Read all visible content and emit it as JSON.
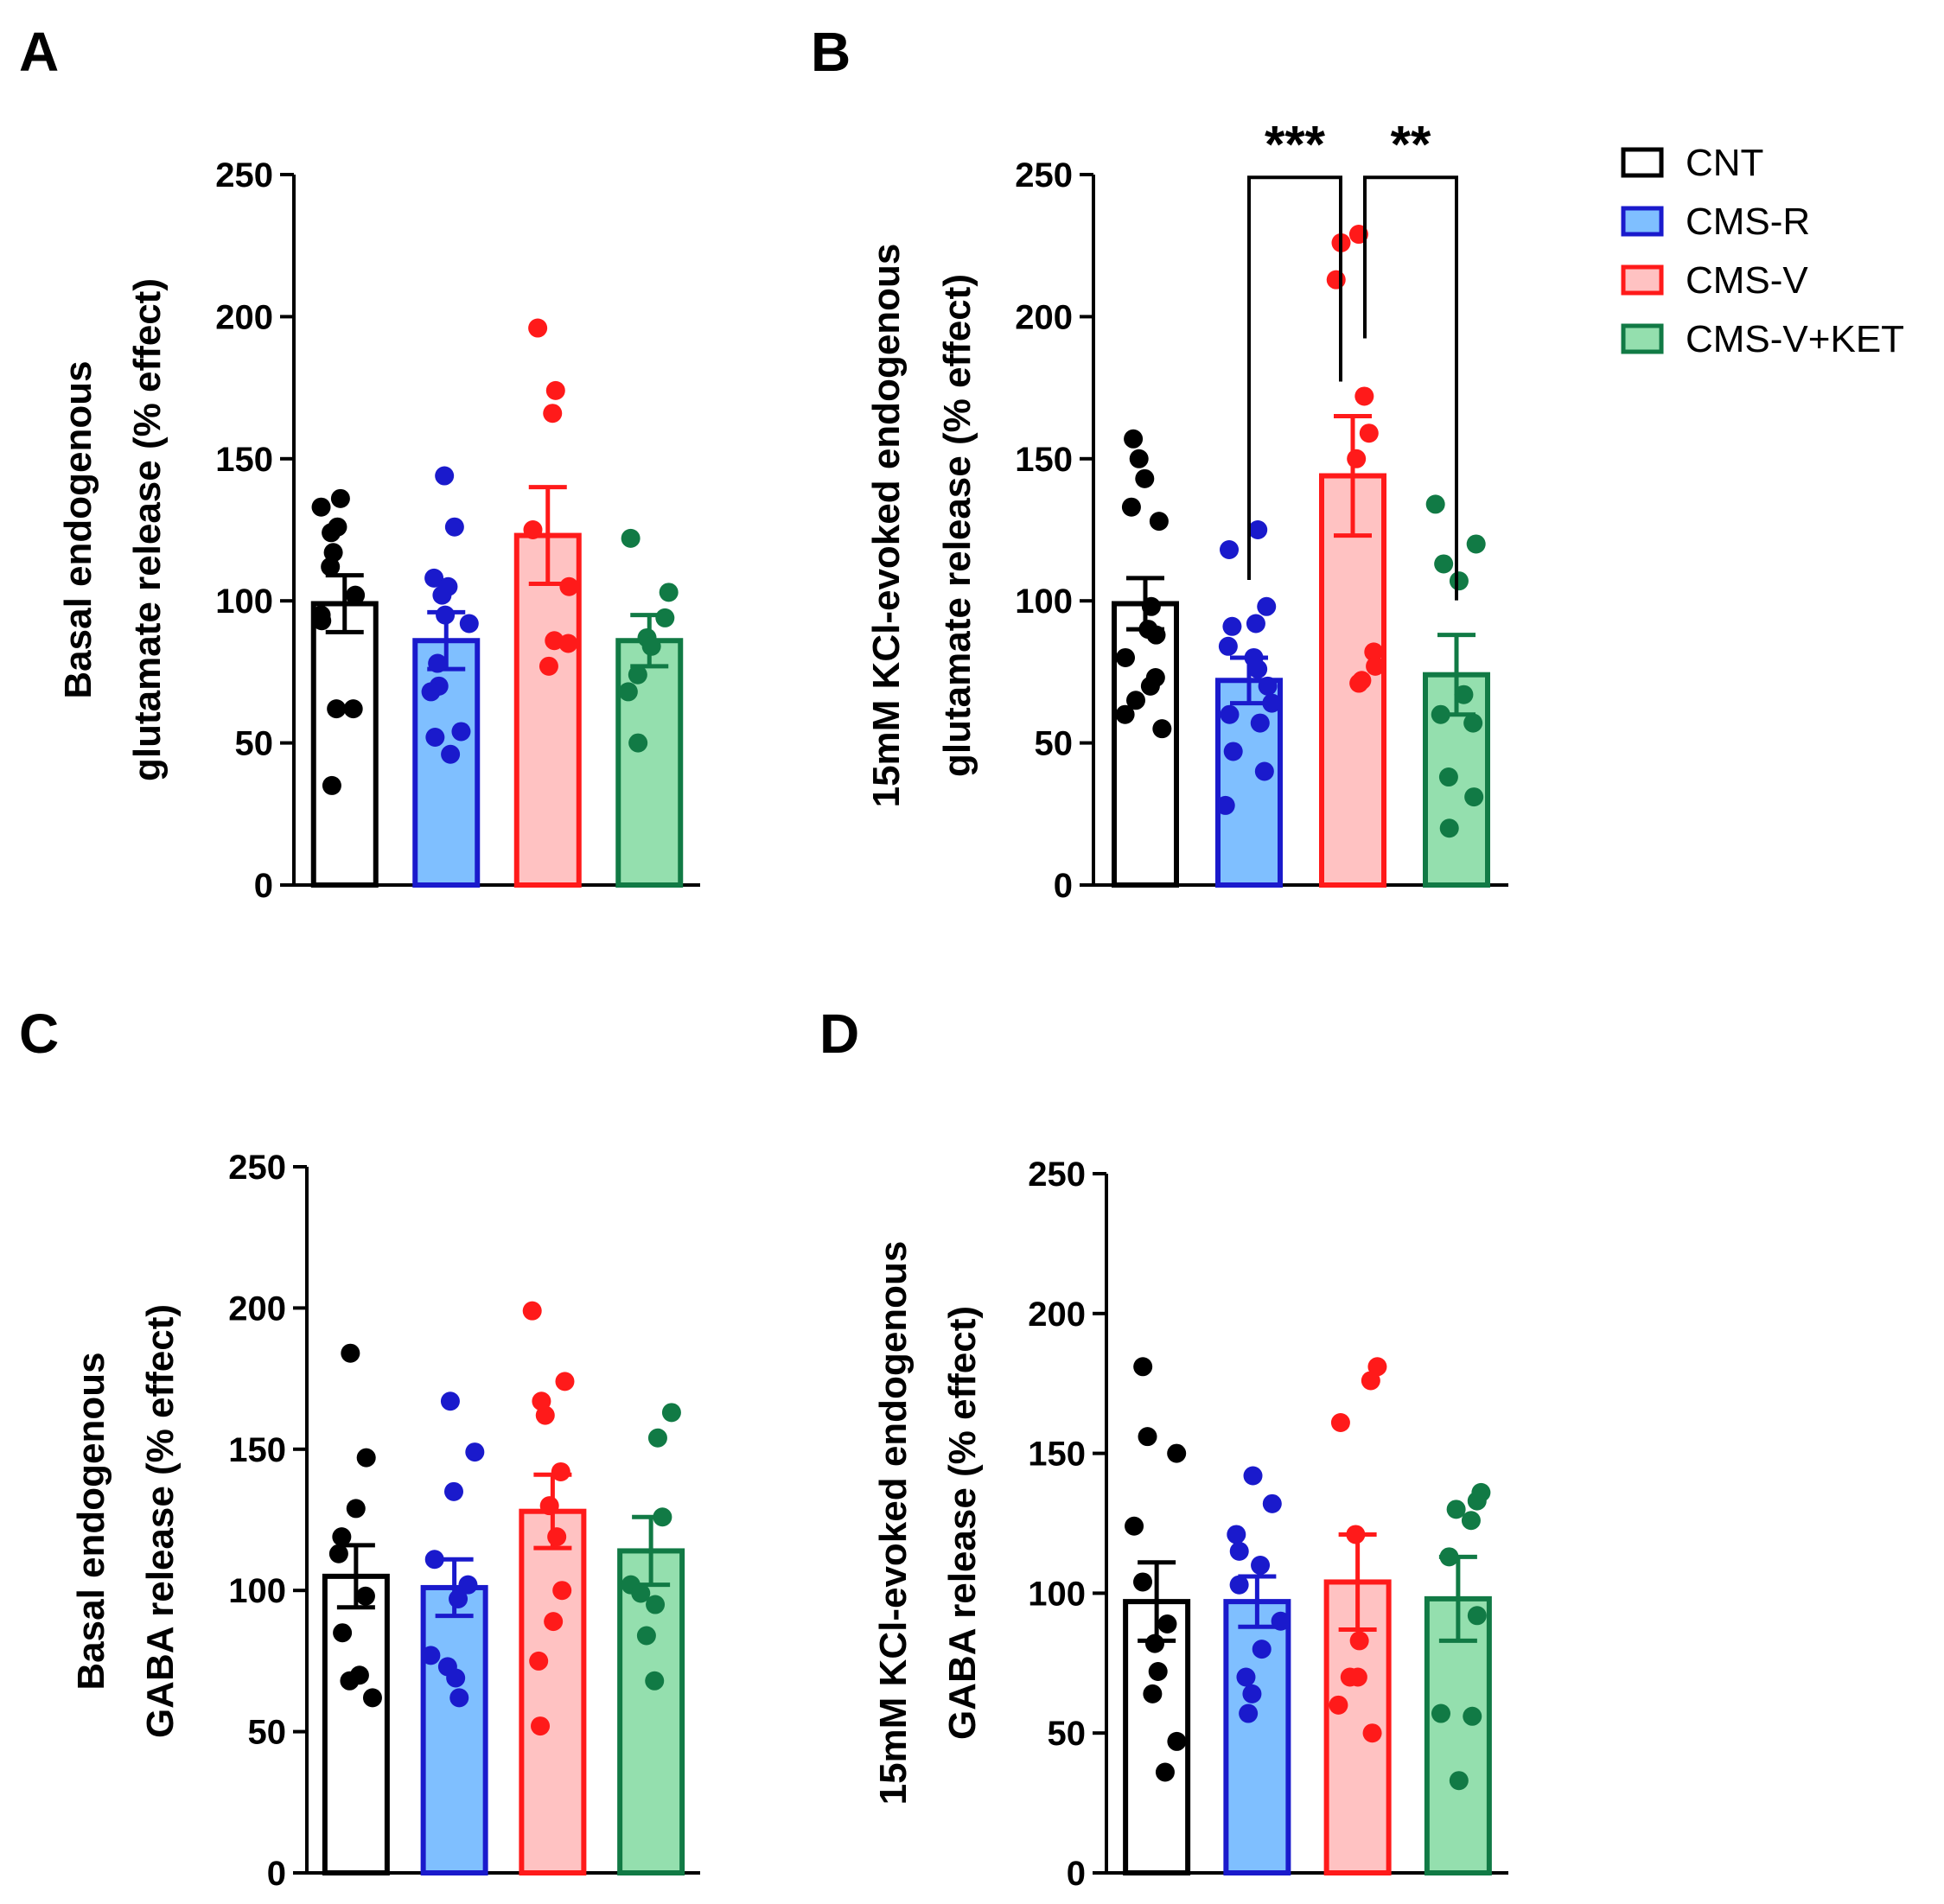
{
  "legend": [
    {
      "label": "CNT",
      "fill": "#ffffff",
      "stroke": "#000000"
    },
    {
      "label": "CMS-R",
      "fill": "#7fbfff",
      "stroke": "#1a1acc"
    },
    {
      "label": "CMS-V",
      "fill": "#ffc2c2",
      "stroke": "#ff1a1a"
    },
    {
      "label": "CMS-V+KET",
      "fill": "#94dfae",
      "stroke": "#117a45"
    }
  ],
  "chart_data": [
    {
      "panel": "A",
      "type": "bar",
      "ylabel_line1": "Basal endogenous",
      "ylabel_line2": "glutamate release (% effect)",
      "ylim": [
        0,
        250
      ],
      "yticks": [
        0,
        50,
        100,
        150,
        200,
        250
      ],
      "series": [
        {
          "name": "CNT",
          "mean": 99,
          "sem": 10,
          "points": [
            136,
            133,
            126,
            124,
            117,
            112,
            102,
            95,
            93,
            62,
            62,
            35
          ]
        },
        {
          "name": "CMS-R",
          "mean": 86,
          "sem": 10,
          "points": [
            144,
            126,
            108,
            105,
            102,
            95,
            92,
            78,
            70,
            68,
            54,
            52,
            46
          ]
        },
        {
          "name": "CMS-V",
          "mean": 123,
          "sem": 17,
          "points": [
            196,
            174,
            166,
            125,
            105,
            86,
            85,
            77
          ]
        },
        {
          "name": "CMS-V+KET",
          "mean": 86,
          "sem": 9,
          "points": [
            122,
            103,
            94,
            87,
            84,
            74,
            68,
            50
          ]
        }
      ],
      "significance": []
    },
    {
      "panel": "B",
      "type": "bar",
      "ylabel_line1": "15mM KCl-evoked endogenous",
      "ylabel_line2": "glutamate release (% effect)",
      "ylim": [
        0,
        250
      ],
      "yticks": [
        0,
        50,
        100,
        150,
        200,
        250
      ],
      "series": [
        {
          "name": "CNT",
          "mean": 99,
          "sem": 9,
          "points": [
            157,
            150,
            143,
            133,
            128,
            98,
            90,
            88,
            80,
            73,
            70,
            65,
            60,
            55
          ]
        },
        {
          "name": "CMS-R",
          "mean": 72,
          "sem": 8,
          "points": [
            125,
            118,
            98,
            92,
            91,
            84,
            80,
            76,
            70,
            64,
            60,
            57,
            47,
            40,
            28
          ]
        },
        {
          "name": "CMS-V",
          "mean": 144,
          "sem": 21,
          "points": [
            229,
            226,
            213,
            172,
            159,
            150,
            82,
            77,
            72,
            71
          ]
        },
        {
          "name": "CMS-V+KET",
          "mean": 74,
          "sem": 14,
          "points": [
            134,
            120,
            113,
            107,
            67,
            60,
            57,
            38,
            31,
            20
          ]
        }
      ],
      "significance": [
        {
          "from": 1,
          "to": 2,
          "label": "***"
        },
        {
          "from": 2,
          "to": 3,
          "label": "**"
        }
      ]
    },
    {
      "panel": "C",
      "type": "bar",
      "ylabel_line1": "Basal endogenous",
      "ylabel_line2": "GABA release (% effect)",
      "ylim": [
        0,
        250
      ],
      "yticks": [
        0,
        50,
        100,
        150,
        200,
        250
      ],
      "series": [
        {
          "name": "CNT",
          "mean": 105,
          "sem": 11,
          "points": [
            184,
            147,
            129,
            119,
            113,
            98,
            85,
            70,
            68,
            62
          ]
        },
        {
          "name": "CMS-R",
          "mean": 101,
          "sem": 10,
          "points": [
            167,
            149,
            135,
            111,
            102,
            97,
            77,
            73,
            69,
            62
          ]
        },
        {
          "name": "CMS-V",
          "mean": 128,
          "sem": 13,
          "points": [
            199,
            174,
            167,
            162,
            142,
            130,
            119,
            100,
            89,
            75,
            52
          ]
        },
        {
          "name": "CMS-V+KET",
          "mean": 114,
          "sem": 12,
          "points": [
            163,
            154,
            126,
            102,
            99,
            95,
            84,
            68
          ]
        }
      ],
      "significance": []
    },
    {
      "panel": "D",
      "type": "bar",
      "ylabel_line1": "15mM KCl-evoked endogenous",
      "ylabel_line2": "GABA release (% effect)",
      "ylim": [
        0,
        250
      ],
      "yticks": [
        0,
        50,
        100,
        150,
        200,
        250
      ],
      "series": [
        {
          "name": "CNT",
          "mean": 97,
          "sem": 14,
          "points": [
            181,
            156,
            150,
            124,
            104,
            89,
            82,
            72,
            64,
            47,
            36
          ]
        },
        {
          "name": "CMS-R",
          "mean": 97,
          "sem": 9,
          "points": [
            142,
            132,
            121,
            115,
            110,
            103,
            90,
            80,
            70,
            64,
            57
          ]
        },
        {
          "name": "CMS-V",
          "mean": 104,
          "sem": 17,
          "points": [
            181,
            176,
            161,
            121,
            83,
            70,
            70,
            60,
            50
          ]
        },
        {
          "name": "CMS-V+KET",
          "mean": 98,
          "sem": 15,
          "points": [
            136,
            133,
            130,
            126,
            113,
            92,
            57,
            56,
            33
          ]
        }
      ],
      "significance": []
    }
  ]
}
